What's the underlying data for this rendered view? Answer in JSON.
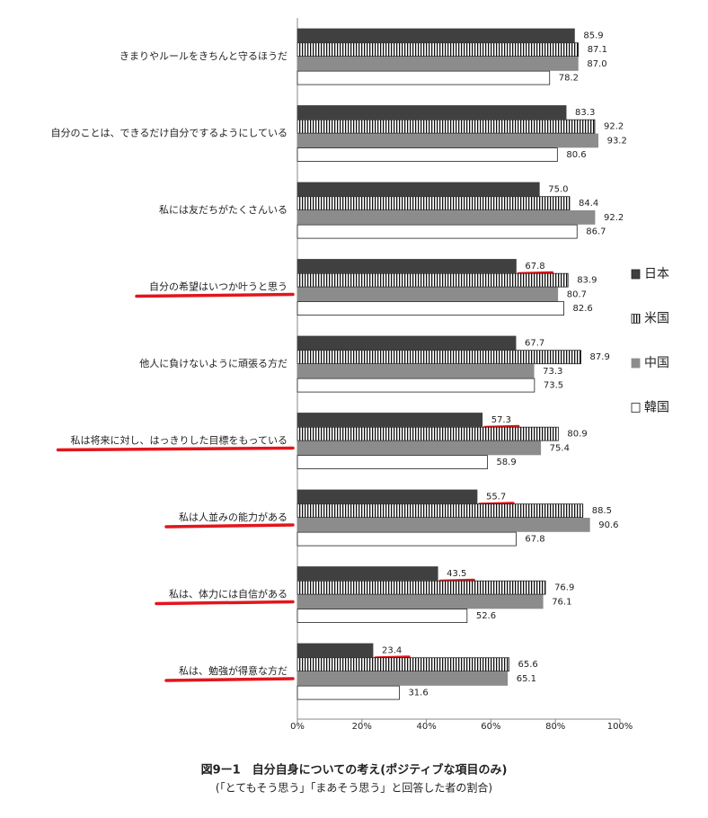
{
  "chart_data": {
    "type": "hbar",
    "title": "図9ー1　自分自身についての考え(ポジティブな項目のみ)",
    "subtitle": "(「とてもそう思う」「まあそう思う」と回答した者の割合)",
    "categories": [
      "きまりやルールをきちんと守るほうだ",
      "自分のことは、できるだけ自分でするようにしている",
      "私には友だちがたくさんいる",
      "自分の希望はいつか叶うと思う",
      "他人に負けないように頑張る方だ",
      "私は将来に対し、はっきりした目標をもっている",
      "私は人並みの能力がある",
      "私は、体力には自信がある",
      "私は、勉強が得意な方だ"
    ],
    "series": [
      {
        "name": "日本",
        "color": "#404040",
        "values": [
          85.9,
          83.3,
          75.0,
          67.8,
          67.7,
          57.3,
          55.7,
          43.5,
          23.4
        ],
        "value_labels": [
          "85.9",
          "83.3",
          "75.0",
          "67.8",
          "67.7",
          "57.3",
          "55.7",
          "43.5",
          "23.4"
        ]
      },
      {
        "name": "米国",
        "color": "striped",
        "values": [
          87.1,
          92.2,
          84.4,
          83.9,
          87.9,
          80.9,
          88.5,
          76.9,
          65.6
        ],
        "value_labels": [
          "87.1",
          "92.2",
          "84.4",
          "83.9",
          "87.9",
          "80.9",
          "88.5",
          "76.9",
          "65.6"
        ]
      },
      {
        "name": "中国",
        "color": "#8c8c8c",
        "values": [
          87.0,
          93.2,
          92.2,
          80.7,
          73.3,
          75.4,
          90.6,
          76.1,
          65.1
        ],
        "value_labels": [
          "87.0",
          "93.2",
          "92.2",
          "80.7",
          "73.3",
          "75.4",
          "90.6",
          "76.1",
          "65.1"
        ]
      },
      {
        "name": "韓国",
        "color": "#ffffff",
        "values": [
          78.2,
          80.6,
          86.7,
          82.6,
          73.5,
          58.9,
          67.8,
          52.6,
          31.6
        ],
        "value_labels": [
          "78.2",
          "80.6",
          "86.7",
          "82.6",
          "73.5",
          "58.9",
          "67.8",
          "52.6",
          "31.6"
        ]
      }
    ],
    "xlim": [
      0,
      100
    ],
    "xticks": [
      {
        "value": 0,
        "label": "0%"
      },
      {
        "value": 20,
        "label": "20%"
      },
      {
        "value": 40,
        "label": "40%"
      },
      {
        "value": 60,
        "label": "60%"
      },
      {
        "value": 80,
        "label": "80%"
      },
      {
        "value": 100,
        "label": "100%"
      }
    ],
    "highlighted": [
      3,
      5,
      6,
      7,
      8
    ],
    "highlight_color": "#e3151c",
    "legend": "right"
  }
}
